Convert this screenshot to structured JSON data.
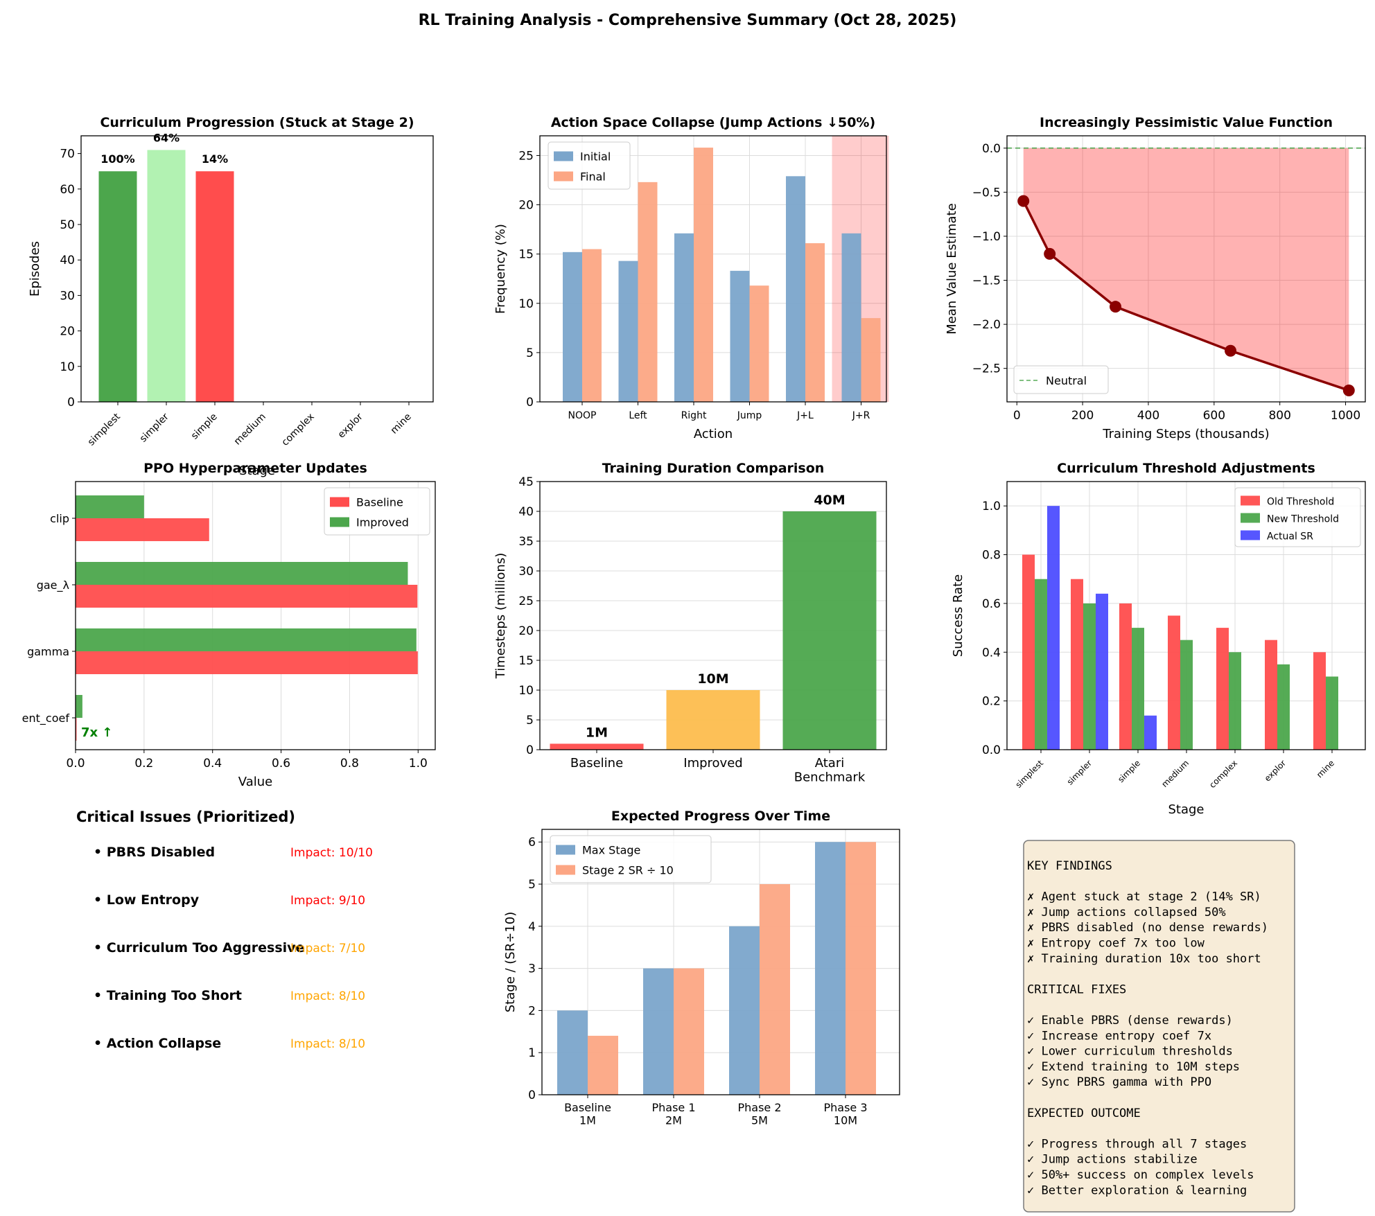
{
  "page_title": "RL Training Analysis - Comprehensive Summary (Oct 28, 2025)",
  "colors": {
    "red": "#ff4d4d",
    "green": "#4ca64c",
    "light_green": "#b2f2b2",
    "blue": "#4d4dff",
    "steel": "#7ba5cb",
    "salmon": "#fca684",
    "orange": "#fdbd4e",
    "dark_red": "#8b0000",
    "impact_red": "#ff0000",
    "impact_orange": "#ffa500",
    "box_bg": "#f7ecd8"
  },
  "chart_data": [
    {
      "id": "curriculum",
      "type": "bar",
      "title": "Curriculum Progression (Stuck at Stage 2)",
      "xlabel": "Stage",
      "ylabel": "Episodes",
      "categories": [
        "simplest",
        "simpler",
        "simple",
        "medium",
        "complex",
        "explor",
        "mine"
      ],
      "values": [
        65,
        71,
        65,
        0,
        0,
        0,
        0
      ],
      "bar_colors": [
        "green",
        "light_green",
        "red",
        "",
        "",
        "",
        ""
      ],
      "data_labels": [
        "100%",
        "64%",
        "14%",
        "",
        "",
        "",
        ""
      ],
      "ylim": [
        0,
        75
      ],
      "yticks": [
        0,
        10,
        20,
        30,
        40,
        50,
        60,
        70
      ],
      "grid": false
    },
    {
      "id": "action_collapse",
      "type": "bar",
      "title": "Action Space Collapse (Jump Actions ↓50%)",
      "xlabel": "Action",
      "ylabel": "Frequency (%)",
      "categories": [
        "NOOP",
        "Left",
        "Right",
        "Jump",
        "J+L",
        "J+R"
      ],
      "series": [
        {
          "name": "Initial",
          "values": [
            15.2,
            14.3,
            17.1,
            13.3,
            22.9,
            17.1
          ],
          "color": "steel"
        },
        {
          "name": "Final",
          "values": [
            15.5,
            22.3,
            25.8,
            11.8,
            16.1,
            8.5
          ],
          "color": "salmon"
        }
      ],
      "highlight_category": "J+R",
      "ylim": [
        0,
        27
      ],
      "yticks": [
        0,
        5,
        10,
        15,
        20,
        25
      ],
      "grid": true,
      "legend": "upper-left"
    },
    {
      "id": "value_function",
      "type": "line",
      "title": "Increasingly Pessimistic Value Function",
      "xlabel": "Training Steps (thousands)",
      "ylabel": "Mean Value Estimate",
      "x": [
        20,
        100,
        300,
        650,
        1010
      ],
      "y": [
        -0.6,
        -1.2,
        -1.8,
        -2.3,
        -2.75
      ],
      "reference_line": {
        "name": "Neutral",
        "y": 0
      },
      "xlim": [
        -30,
        1060
      ],
      "ylim": [
        -2.88,
        0.14
      ],
      "xticks": [
        0,
        200,
        400,
        600,
        800,
        1000
      ],
      "yticks": [
        0.0,
        -0.5,
        -1.0,
        -1.5,
        -2.0,
        -2.5
      ],
      "ytick_labels": [
        "0.0",
        "−0.5",
        "−1.0",
        "−1.5",
        "−2.0",
        "−2.5"
      ],
      "grid": true,
      "legend": "lower-left"
    },
    {
      "id": "hyperparams",
      "type": "bar",
      "orientation": "horizontal",
      "title": "PPO Hyperparameter Updates",
      "xlabel": "Value",
      "ylabel": "",
      "categories": [
        "ent_coef",
        "gamma",
        "gae_λ",
        "clip"
      ],
      "series": [
        {
          "name": "Baseline",
          "values": [
            0.003,
            0.999,
            0.998,
            0.39
          ],
          "color": "red"
        },
        {
          "name": "Improved",
          "values": [
            0.02,
            0.995,
            0.97,
            0.2
          ],
          "color": "green"
        }
      ],
      "annotation": "7x ↑",
      "xlim": [
        0,
        1.05
      ],
      "xticks": [
        0.0,
        0.2,
        0.4,
        0.6,
        0.8,
        1.0
      ],
      "grid": true,
      "legend": "upper-right"
    },
    {
      "id": "duration",
      "type": "bar",
      "title": "Training Duration Comparison",
      "xlabel": "",
      "ylabel": "Timesteps (millions)",
      "categories": [
        "Baseline",
        "Improved",
        "Atari\nBenchmark"
      ],
      "values": [
        1,
        10,
        40
      ],
      "bar_colors": [
        "red",
        "orange",
        "green"
      ],
      "data_labels": [
        "1M",
        "10M",
        "40M"
      ],
      "ylim": [
        0,
        45
      ],
      "yticks": [
        0,
        5,
        10,
        15,
        20,
        25,
        30,
        35,
        40,
        45
      ],
      "grid": true
    },
    {
      "id": "thresholds",
      "type": "bar",
      "title": "Curriculum Threshold Adjustments",
      "xlabel": "Stage",
      "ylabel": "Success Rate",
      "categories": [
        "simplest",
        "simpler",
        "simple",
        "medium",
        "complex",
        "explor",
        "mine"
      ],
      "series": [
        {
          "name": "Old Threshold",
          "values": [
            0.8,
            0.7,
            0.6,
            0.55,
            0.5,
            0.45,
            0.4
          ],
          "color": "red"
        },
        {
          "name": "New Threshold",
          "values": [
            0.7,
            0.6,
            0.5,
            0.45,
            0.4,
            0.35,
            0.3
          ],
          "color": "green"
        },
        {
          "name": "Actual SR",
          "values": [
            1.0,
            0.64,
            0.14,
            0,
            0,
            0,
            0
          ],
          "color": "blue"
        }
      ],
      "ylim": [
        0,
        1.1
      ],
      "yticks": [
        0.0,
        0.2,
        0.4,
        0.6,
        0.8,
        1.0
      ],
      "grid": true,
      "legend": "upper-right"
    },
    {
      "id": "issues",
      "type": "table",
      "title": "Critical Issues (Prioritized)",
      "rows": [
        {
          "issue": "• PBRS Disabled",
          "impact": "Impact: 10/10",
          "color": "impact_red"
        },
        {
          "issue": "• Low Entropy",
          "impact": "Impact: 9/10",
          "color": "impact_red"
        },
        {
          "issue": "• Curriculum Too Aggressive",
          "impact": "Impact: 7/10",
          "color": "impact_orange"
        },
        {
          "issue": "• Training Too Short",
          "impact": "Impact: 8/10",
          "color": "impact_orange"
        },
        {
          "issue": "• Action Collapse",
          "impact": "Impact: 8/10",
          "color": "impact_orange"
        }
      ]
    },
    {
      "id": "expected_progress",
      "type": "bar",
      "title": "Expected Progress Over Time",
      "xlabel": "",
      "ylabel": "Stage / (SR÷10)",
      "categories": [
        "Baseline\n1M",
        "Phase 1\n2M",
        "Phase 2\n5M",
        "Phase 3\n10M"
      ],
      "series": [
        {
          "name": "Max Stage",
          "values": [
            2,
            3,
            4,
            6
          ],
          "color": "steel"
        },
        {
          "name": "Stage 2 SR ÷ 10",
          "values": [
            1.4,
            3,
            5,
            6
          ],
          "color": "salmon"
        }
      ],
      "ylim": [
        0,
        6.3
      ],
      "yticks": [
        0,
        1,
        2,
        3,
        4,
        5,
        6
      ],
      "grid": true,
      "legend": "upper-left"
    }
  ],
  "findings_box": {
    "lines": [
      "KEY FINDINGS",
      "",
      "✗ Agent stuck at stage 2 (14% SR)",
      "✗ Jump actions collapsed 50%",
      "✗ PBRS disabled (no dense rewards)",
      "✗ Entropy coef 7x too low",
      "✗ Training duration 10x too short",
      "",
      "CRITICAL FIXES",
      "",
      "✓ Enable PBRS (dense rewards)",
      "✓ Increase entropy coef 7x",
      "✓ Lower curriculum thresholds",
      "✓ Extend training to 10M steps",
      "✓ Sync PBRS gamma with PPO",
      "",
      "EXPECTED OUTCOME",
      "",
      "✓ Progress through all 7 stages",
      "✓ Jump actions stabilize",
      "✓ 50%+ success on complex levels",
      "✓ Better exploration & learning"
    ]
  }
}
